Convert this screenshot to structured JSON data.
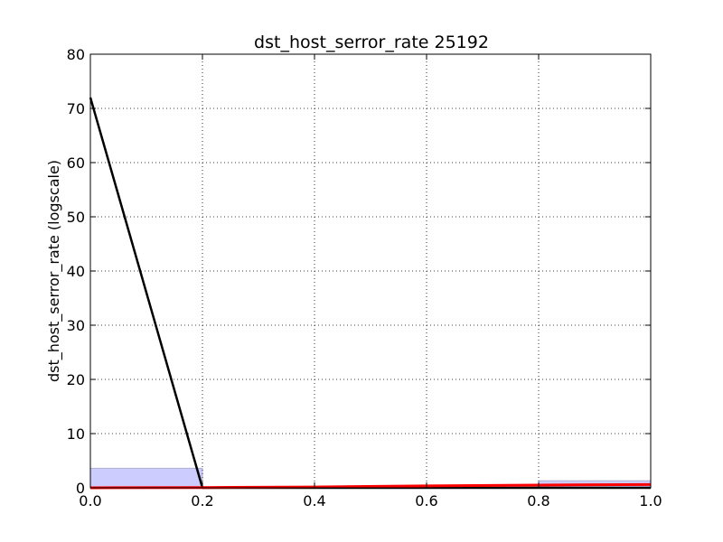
{
  "chart_data": {
    "type": "line",
    "title": "dst_host_serror_rate 25192",
    "xlabel": "",
    "ylabel": "dst_host_serror_rate (logscale)",
    "xlim": [
      0.0,
      1.0
    ],
    "ylim": [
      0,
      80
    ],
    "xticks": [
      "0.0",
      "0.2",
      "0.4",
      "0.6",
      "0.8",
      "1.0"
    ],
    "yticks": [
      "0",
      "10",
      "20",
      "30",
      "40",
      "50",
      "60",
      "70",
      "80"
    ],
    "grid": true,
    "histogram_bins": [
      {
        "x0": 0.0,
        "x1": 0.2,
        "value": 3.6
      },
      {
        "x0": 0.2,
        "x1": 0.4,
        "value": 0.0
      },
      {
        "x0": 0.4,
        "x1": 0.6,
        "value": 0.0
      },
      {
        "x0": 0.6,
        "x1": 0.8,
        "value": 0.0
      },
      {
        "x0": 0.8,
        "x1": 1.0,
        "value": 1.3
      }
    ],
    "series": [
      {
        "color": "#000000",
        "x": [
          0.0,
          0.2,
          0.4,
          0.6,
          0.8,
          1.0
        ],
        "values": [
          72,
          0,
          0,
          0,
          0,
          0
        ]
      },
      {
        "color": "#ff0000",
        "x": [
          0.0,
          0.2,
          0.4,
          0.6,
          0.8,
          1.0
        ],
        "values": [
          0,
          0.05,
          0.15,
          0.35,
          0.5,
          0.6
        ]
      }
    ],
    "colors": {
      "bar_fill": "#ccccff",
      "bar_edge": "#b0b0d0",
      "grid": "#000000"
    }
  }
}
